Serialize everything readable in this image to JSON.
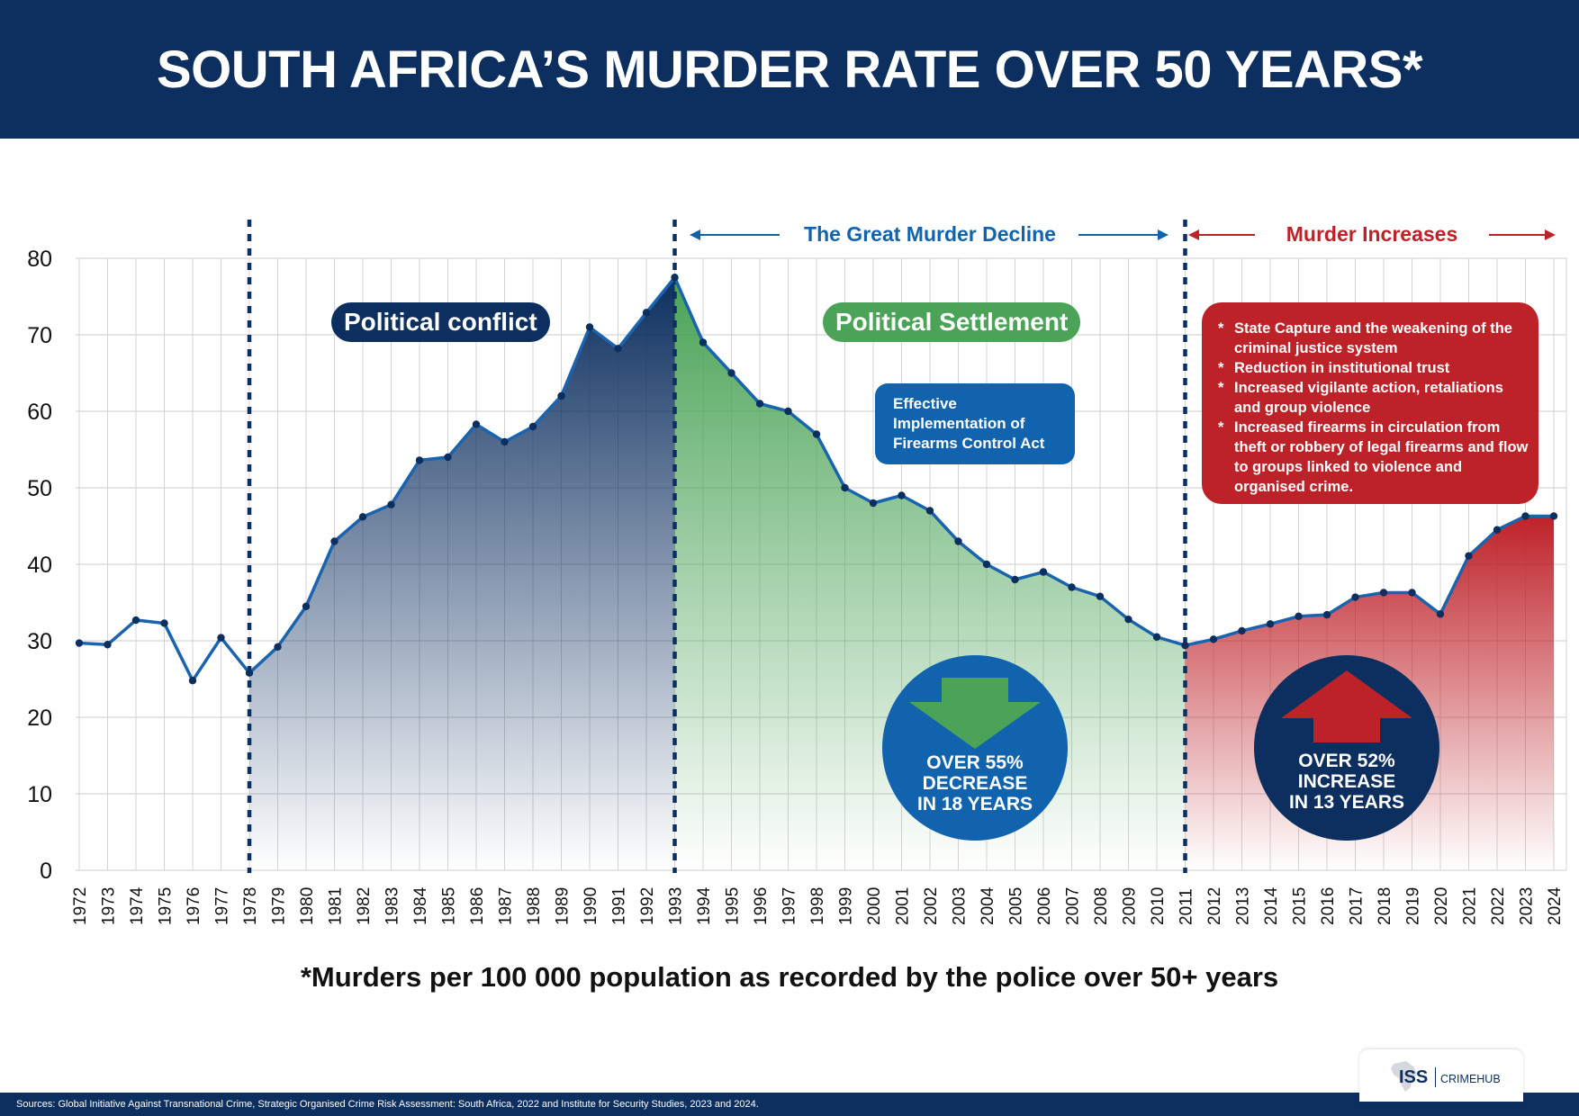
{
  "header": {
    "title": "SOUTH AFRICA’S MURDER RATE OVER 50 YEARS*"
  },
  "periods": {
    "decline_label": "The Great Murder Decline",
    "increase_label": "Murder Increases"
  },
  "annotations": {
    "political_conflict": "Political conflict",
    "political_settlement": "Political Settlement",
    "firearms_box": [
      "Effective",
      "Implementation of",
      "Firearms Control Act"
    ],
    "increase_reasons": [
      "State Capture and the weakening of the criminal justice system",
      "Reduction in institutional trust",
      "Increased vigilante action, retaliations and group violence",
      "Increased firearms in circulation from theft or robbery of legal firearms and flow to groups linked to violence and organised crime."
    ],
    "decrease_stat": [
      "OVER 55%",
      "DECREASE",
      "IN 18 YEARS"
    ],
    "increase_stat": [
      "OVER 52%",
      "INCREASE",
      "IN 13 YEARS"
    ]
  },
  "footnote": "*Murders per 100 000 population as recorded by the police over 50+ years",
  "sources": "Sources: Global Initiative Against Transnational Crime, Strategic Organised Crime Risk Assessment: South Africa, 2022 and Institute for Security Studies, 2023 and 2024.",
  "logo": {
    "brand": "ISS",
    "product": "CRIMEHUB"
  },
  "colors": {
    "navy": "#0d2f5f",
    "line": "#1a63ae",
    "green": "#4aa356",
    "red": "#be2229",
    "grid": "#cccccc"
  },
  "chart_data": {
    "type": "line",
    "x": [
      "1972",
      "1973",
      "1974",
      "1975",
      "1976",
      "1977",
      "1978",
      "1979",
      "1980",
      "1981",
      "1982",
      "1983",
      "1984",
      "1985",
      "1986",
      "1987",
      "1988",
      "1989",
      "1990",
      "1991",
      "1992",
      "1993",
      "1994",
      "1995",
      "1996",
      "1997",
      "1998",
      "1999",
      "2000",
      "2001",
      "2002",
      "2003",
      "2004",
      "2005",
      "2006",
      "2007",
      "2008",
      "2009",
      "2010",
      "2011",
      "2012",
      "2013",
      "2014",
      "2015",
      "2016",
      "2017",
      "2018",
      "2019",
      "2020",
      "2021",
      "2022",
      "2023",
      "2024"
    ],
    "values": [
      29.7,
      29.5,
      32.7,
      32.3,
      24.8,
      30.4,
      25.8,
      29.2,
      34.5,
      43,
      46.2,
      47.8,
      53.6,
      54,
      58.3,
      56,
      58,
      62,
      71,
      68.2,
      72.9,
      77.5,
      69,
      65,
      61,
      60,
      57,
      50,
      48,
      49,
      47,
      43,
      40,
      38,
      39,
      37,
      35.8,
      32.8,
      30.5,
      29.4,
      30.2,
      31.3,
      32.2,
      33.2,
      33.4,
      35.7,
      36.3,
      36.3,
      33.5,
      41.1,
      44.5,
      46.3,
      46.3
    ],
    "ylim": [
      0,
      80
    ],
    "yticks": [
      0,
      10,
      20,
      30,
      40,
      50,
      60,
      70,
      80
    ],
    "grid": true,
    "phase_markers": [
      "1978",
      "1993",
      "2011"
    ],
    "phases": [
      {
        "from": "1978",
        "to": "1993",
        "color": "#0d2f5f"
      },
      {
        "from": "1993",
        "to": "2011",
        "color": "#4aa356"
      },
      {
        "from": "2011",
        "to": "2024",
        "color": "#be2229"
      }
    ]
  }
}
